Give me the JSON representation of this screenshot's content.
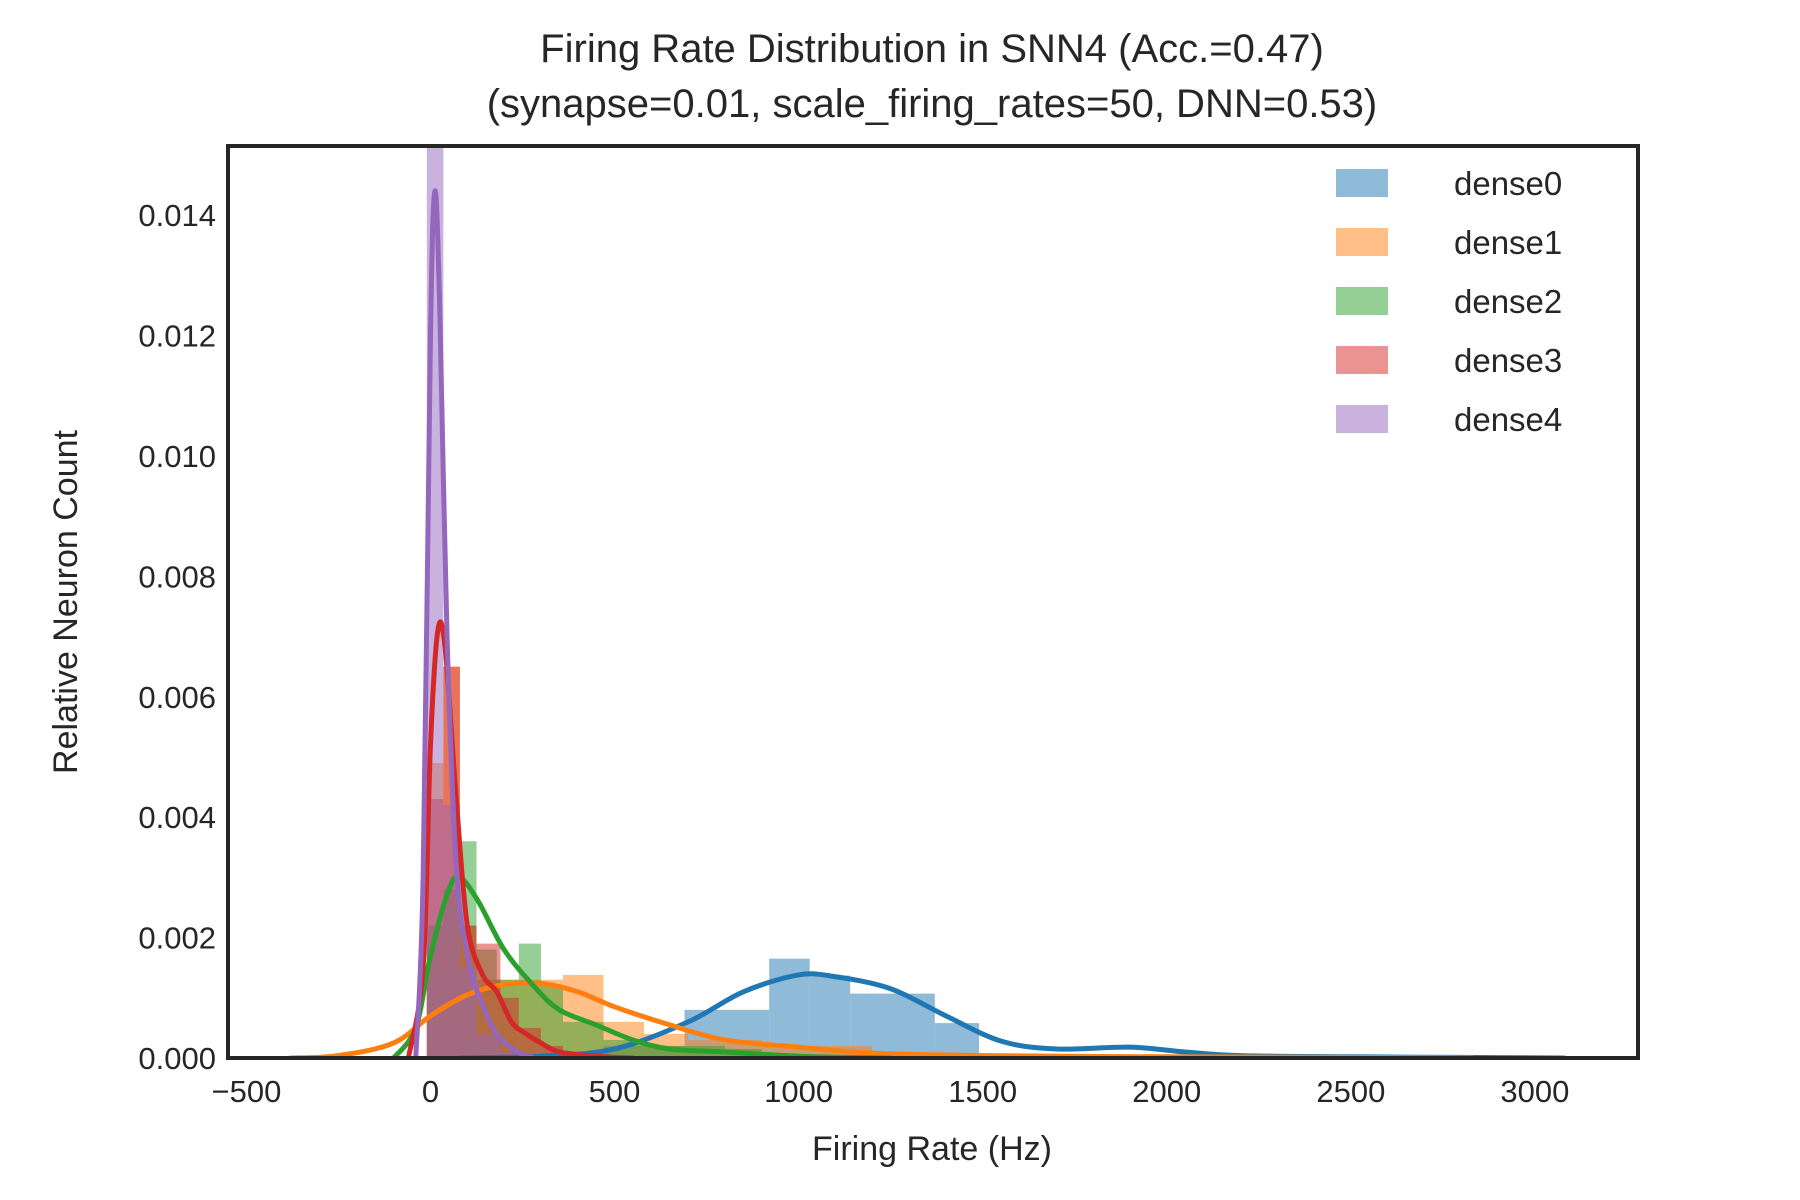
{
  "chart_data": {
    "type": "histogram+kde",
    "title": "Firing Rate Distribution in SNN4 (Acc.=0.47)",
    "subtitle": "(synapse=0.01, scale_firing_rates=50, DNN=0.53)",
    "xlabel": "Firing Rate (Hz)",
    "ylabel": "Relative Neuron Count",
    "xlim": [
      -550,
      3280
    ],
    "ylim": [
      0,
      0.01515
    ],
    "x_ticks": [
      -500,
      0,
      500,
      1000,
      1500,
      2000,
      2500,
      3000
    ],
    "x_tick_labels": [
      "−500",
      "0",
      "500",
      "1000",
      "1500",
      "2000",
      "2500",
      "3000"
    ],
    "y_ticks": [
      0,
      0.002,
      0.004,
      0.006,
      0.008,
      0.01,
      0.012,
      0.014
    ],
    "y_tick_labels": [
      "0.000",
      "0.002",
      "0.004",
      "0.006",
      "0.008",
      "0.010",
      "0.012",
      "0.014"
    ],
    "grid": false,
    "legend_position": "top-right",
    "series": [
      {
        "name": "dense0",
        "color": "#1f77b4",
        "hist_bins": [
          {
            "x0": 470,
            "x1": 690,
            "y": 0.0002
          },
          {
            "x0": 690,
            "x1": 920,
            "y": 0.0008
          },
          {
            "x0": 920,
            "x1": 1030,
            "y": 0.00165
          },
          {
            "x0": 1030,
            "x1": 1140,
            "y": 0.00137
          },
          {
            "x0": 1140,
            "x1": 1370,
            "y": 0.00107
          },
          {
            "x0": 1370,
            "x1": 1490,
            "y": 0.00058
          },
          {
            "x0": 1490,
            "x1": 2990,
            "y": 2e-05
          }
        ],
        "kde": [
          [
            80,
            0
          ],
          [
            300,
            3e-05
          ],
          [
            500,
            0.00015
          ],
          [
            700,
            0.0006
          ],
          [
            850,
            0.0011
          ],
          [
            1000,
            0.00138
          ],
          [
            1100,
            0.00135
          ],
          [
            1250,
            0.00115
          ],
          [
            1400,
            0.0007
          ],
          [
            1550,
            0.00028
          ],
          [
            1700,
            0.00015
          ],
          [
            1900,
            0.00018
          ],
          [
            2050,
            0.0001
          ],
          [
            2200,
            4e-05
          ],
          [
            2500,
            2e-05
          ],
          [
            2800,
            1e-05
          ],
          [
            3080,
            0
          ]
        ]
      },
      {
        "name": "dense1",
        "color": "#ff7f0e",
        "hist_bins": [
          {
            "x0": -10,
            "x1": 35,
            "y": 0.0049
          },
          {
            "x0": 35,
            "x1": 80,
            "y": 0.0065
          },
          {
            "x0": 80,
            "x1": 125,
            "y": 0.0022
          },
          {
            "x0": 125,
            "x1": 240,
            "y": 0.0013
          },
          {
            "x0": 240,
            "x1": 360,
            "y": 0.0013
          },
          {
            "x0": 360,
            "x1": 470,
            "y": 0.00138
          },
          {
            "x0": 470,
            "x1": 580,
            "y": 0.0006
          },
          {
            "x0": 580,
            "x1": 700,
            "y": 0.0004
          },
          {
            "x0": 700,
            "x1": 900,
            "y": 0.0003
          },
          {
            "x0": 900,
            "x1": 1200,
            "y": 0.0002
          },
          {
            "x0": 1200,
            "x1": 2800,
            "y": 3e-05
          }
        ],
        "kde": [
          [
            -380,
            0
          ],
          [
            -250,
            4e-05
          ],
          [
            -100,
            0.00025
          ],
          [
            0,
            0.0007
          ],
          [
            100,
            0.00105
          ],
          [
            200,
            0.00122
          ],
          [
            300,
            0.00124
          ],
          [
            400,
            0.0011
          ],
          [
            500,
            0.00085
          ],
          [
            650,
            0.00055
          ],
          [
            800,
            0.0003
          ],
          [
            1000,
            0.00018
          ],
          [
            1200,
            8e-05
          ],
          [
            1500,
            4e-05
          ],
          [
            2000,
            2e-05
          ],
          [
            2500,
            1e-05
          ],
          [
            2830,
            0
          ]
        ]
      },
      {
        "name": "dense2",
        "color": "#2ca02c",
        "hist_bins": [
          {
            "x0": -10,
            "x1": 35,
            "y": 0.0022
          },
          {
            "x0": 35,
            "x1": 80,
            "y": 0.0028
          },
          {
            "x0": 80,
            "x1": 125,
            "y": 0.0036
          },
          {
            "x0": 125,
            "x1": 180,
            "y": 0.0018
          },
          {
            "x0": 180,
            "x1": 240,
            "y": 0.0013
          },
          {
            "x0": 240,
            "x1": 300,
            "y": 0.0019
          },
          {
            "x0": 300,
            "x1": 360,
            "y": 0.0012
          },
          {
            "x0": 360,
            "x1": 470,
            "y": 0.0006
          },
          {
            "x0": 470,
            "x1": 580,
            "y": 0.0003
          },
          {
            "x0": 580,
            "x1": 800,
            "y": 0.0002
          },
          {
            "x0": 800,
            "x1": 900,
            "y": 0.00015
          }
        ],
        "kde": [
          [
            -100,
            0
          ],
          [
            -40,
            0.0005
          ],
          [
            0,
            0.0017
          ],
          [
            50,
            0.0028
          ],
          [
            80,
            0.003
          ],
          [
            130,
            0.0026
          ],
          [
            200,
            0.0018
          ],
          [
            280,
            0.0012
          ],
          [
            350,
            0.0008
          ],
          [
            450,
            0.00055
          ],
          [
            550,
            0.0003
          ],
          [
            650,
            0.00015
          ],
          [
            800,
            0.0001
          ],
          [
            1000,
            3e-05
          ],
          [
            1250,
            0
          ]
        ]
      },
      {
        "name": "dense3",
        "color": "#d62728",
        "hist_bins": [
          {
            "x0": -10,
            "x1": 35,
            "y": 0.0043
          },
          {
            "x0": 35,
            "x1": 80,
            "y": 0.0065
          },
          {
            "x0": 80,
            "x1": 125,
            "y": 0.0022
          },
          {
            "x0": 125,
            "x1": 190,
            "y": 0.0019
          },
          {
            "x0": 190,
            "x1": 240,
            "y": 0.001
          },
          {
            "x0": 240,
            "x1": 300,
            "y": 0.0005
          },
          {
            "x0": 300,
            "x1": 360,
            "y": 0.0002
          },
          {
            "x0": 360,
            "x1": 470,
            "y": 5e-05
          }
        ],
        "kde": [
          [
            -60,
            0
          ],
          [
            -20,
            0.0015
          ],
          [
            0,
            0.0052
          ],
          [
            20,
            0.0071
          ],
          [
            40,
            0.0068
          ],
          [
            70,
            0.0043
          ],
          [
            100,
            0.0022
          ],
          [
            140,
            0.0014
          ],
          [
            180,
            0.0011
          ],
          [
            220,
            0.0006
          ],
          [
            260,
            0.0004
          ],
          [
            300,
            0.00025
          ],
          [
            350,
            0.0001
          ],
          [
            450,
            3e-05
          ],
          [
            550,
            0
          ]
        ]
      },
      {
        "name": "dense4",
        "color": "#9467bd",
        "hist_bins": [
          {
            "x0": -10,
            "x1": 35,
            "y": 0.0152
          },
          {
            "x0": 35,
            "x1": 80,
            "y": 0.0042
          },
          {
            "x0": 80,
            "x1": 125,
            "y": 0.0015
          },
          {
            "x0": 125,
            "x1": 190,
            "y": 0.0004
          },
          {
            "x0": 190,
            "x1": 240,
            "y": 0.0001
          }
        ],
        "kde": [
          [
            -40,
            0
          ],
          [
            -20,
            0.003
          ],
          [
            0,
            0.012
          ],
          [
            12,
            0.0144
          ],
          [
            25,
            0.0125
          ],
          [
            45,
            0.007
          ],
          [
            70,
            0.0032
          ],
          [
            100,
            0.0017
          ],
          [
            140,
            0.0009
          ],
          [
            180,
            0.0004
          ],
          [
            230,
            0.00012
          ],
          [
            280,
            0
          ]
        ]
      }
    ]
  }
}
